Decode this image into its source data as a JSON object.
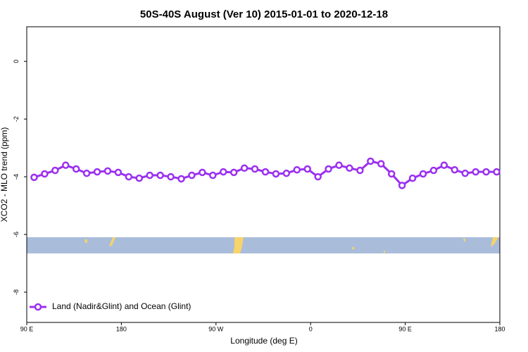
{
  "chart_data": {
    "type": "line",
    "title": "50S-40S August (Ver 10)   2015-01-01 to 2020-12-18",
    "xlabel": "Longitude (deg E)",
    "ylabel": "XCO2 - MLO trend (ppm)",
    "x": [
      97,
      107,
      117,
      127,
      137,
      147,
      157,
      167,
      177,
      187,
      197,
      207,
      217,
      227,
      237,
      247,
      257,
      267,
      277,
      287,
      297,
      307,
      317,
      327,
      337,
      347,
      357,
      367,
      377,
      387,
      397,
      407,
      417,
      427,
      437,
      447,
      457,
      467,
      477,
      487,
      497,
      507,
      517,
      527,
      537
    ],
    "series": [
      {
        "name": "Land (Nadir&Glint) and Ocean (Glint)",
        "color": "#9b30f0",
        "values": [
          -4.02,
          -3.9,
          -3.78,
          -3.6,
          -3.73,
          -3.88,
          -3.83,
          -3.8,
          -3.85,
          -4.0,
          -4.05,
          -3.95,
          -3.95,
          -4.0,
          -4.07,
          -3.95,
          -3.85,
          -3.95,
          -3.83,
          -3.85,
          -3.7,
          -3.73,
          -3.83,
          -3.9,
          -3.88,
          -3.76,
          -3.73,
          -4.0,
          -3.73,
          -3.6,
          -3.7,
          -3.78,
          -3.46,
          -3.55,
          -3.9,
          -4.3,
          -4.05,
          -3.9,
          -3.78,
          -3.6,
          -3.76,
          -3.88,
          -3.83,
          -3.83,
          -3.83
        ]
      }
    ],
    "xlim": [
      90,
      540
    ],
    "xticks": [
      {
        "value": 90,
        "label": "90 E"
      },
      180,
      {
        "value": 270,
        "label": "90 W"
      },
      {
        "value": 360,
        "label": "0"
      },
      {
        "value": 450,
        "label": "90 E"
      },
      {
        "value": 540,
        "label": "180"
      }
    ],
    "ylim": [
      -9.05,
      1.2
    ],
    "yticks": [
      0,
      -2,
      -4,
      -6,
      -8
    ],
    "legend": "bottom-left"
  }
}
